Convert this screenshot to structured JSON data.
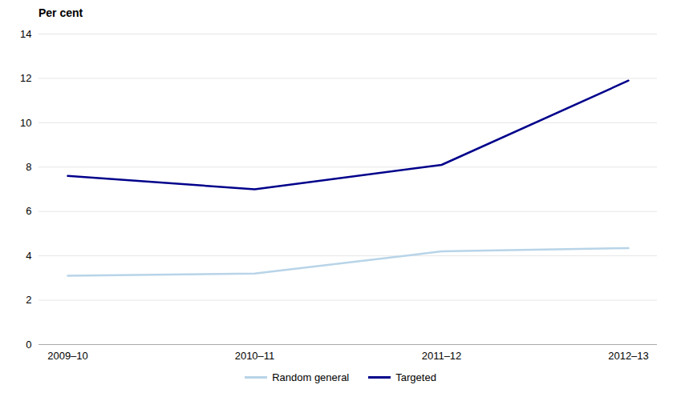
{
  "chart_data": {
    "type": "line",
    "ylabel": "Per cent",
    "categories": [
      "2009–10",
      "2010–11",
      "2011–12",
      "2012–13"
    ],
    "series": [
      {
        "name": "Random general",
        "color": "#b8d4e8",
        "values": [
          3.1,
          3.2,
          4.2,
          4.35
        ]
      },
      {
        "name": "Targeted",
        "color": "#00008B",
        "values": [
          7.6,
          7.0,
          8.1,
          11.9
        ]
      }
    ],
    "ylim": [
      0,
      14
    ],
    "yticks": [
      0,
      2,
      4,
      6,
      8,
      10,
      12,
      14
    ],
    "grid": true,
    "legend": "bottom"
  }
}
